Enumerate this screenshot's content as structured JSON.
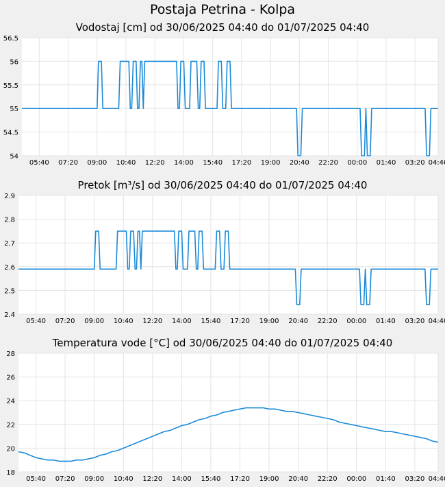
{
  "page": {
    "title": "Postaja Petrina - Kolpa"
  },
  "colors": {
    "series": "#1a8ad8",
    "grid": "#e4e4e4",
    "plot_background": "#ffffff",
    "page_background": "#f0f0f0"
  },
  "chart_data": [
    {
      "type": "line",
      "title": "Vodostaj [cm] od 30/06/2025 04:40 do 01/07/2025 04:40",
      "xlabel": "",
      "ylabel": "",
      "x_tick_labels": [
        "05:40",
        "07:20",
        "09:00",
        "10:40",
        "12:20",
        "14:00",
        "15:40",
        "17:20",
        "19:00",
        "20:40",
        "22:20",
        "00:00",
        "01:40",
        "03:20",
        "04:40"
      ],
      "x_tick_minutes": [
        60,
        160,
        260,
        360,
        460,
        560,
        660,
        760,
        860,
        960,
        1060,
        1160,
        1260,
        1360,
        1440
      ],
      "x_unit": "minutes from 30/06/2025 04:40",
      "xlim": [
        0,
        1440
      ],
      "ylim": [
        54,
        56.5
      ],
      "y_ticks": [
        54,
        54.5,
        55,
        55.5,
        56,
        56.5
      ],
      "y_tick_labels": [
        "54",
        "54.5",
        "55",
        "55.5",
        "56",
        "56.5"
      ],
      "grid": true,
      "step": 5,
      "spike_value": 56,
      "base_value": 55,
      "dip_value": 54,
      "up_segments": [
        [
          265,
          275
        ],
        [
          340,
          370
        ],
        [
          385,
          395
        ],
        [
          410,
          415
        ],
        [
          425,
          535
        ],
        [
          550,
          560
        ],
        [
          585,
          605
        ],
        [
          620,
          630
        ],
        [
          680,
          690
        ],
        [
          710,
          720
        ]
      ],
      "down_segments": [
        [
          955,
          965
        ],
        [
          1175,
          1185
        ],
        [
          1195,
          1205
        ],
        [
          1400,
          1410
        ]
      ]
    },
    {
      "type": "line",
      "title": "Pretok [m³/s] od 30/06/2025 04:40 do 01/07/2025 04:40",
      "xlabel": "",
      "ylabel": "",
      "x_tick_labels": [
        "05:40",
        "07:20",
        "09:00",
        "10:40",
        "12:20",
        "14:00",
        "15:40",
        "17:20",
        "19:00",
        "20:40",
        "22:20",
        "00:00",
        "01:40",
        "03:20",
        "04:40"
      ],
      "x_tick_minutes": [
        60,
        160,
        260,
        360,
        460,
        560,
        660,
        760,
        860,
        960,
        1060,
        1160,
        1260,
        1360,
        1440
      ],
      "xlim": [
        0,
        1440
      ],
      "ylim": [
        2.4,
        2.9
      ],
      "y_ticks": [
        2.4,
        2.5,
        2.6,
        2.7,
        2.8,
        2.9
      ],
      "y_tick_labels": [
        "2.4",
        "2.5",
        "2.6",
        "2.7",
        "2.8",
        "2.9"
      ],
      "grid": true,
      "step": 5,
      "spike_value": 2.75,
      "base_value": 2.59,
      "dip_value": 2.44,
      "up_segments": [
        [
          265,
          275
        ],
        [
          340,
          370
        ],
        [
          385,
          395
        ],
        [
          410,
          415
        ],
        [
          425,
          535
        ],
        [
          550,
          560
        ],
        [
          585,
          605
        ],
        [
          620,
          630
        ],
        [
          680,
          690
        ],
        [
          710,
          720
        ]
      ],
      "down_segments": [
        [
          955,
          965
        ],
        [
          1175,
          1185
        ],
        [
          1195,
          1205
        ],
        [
          1400,
          1410
        ]
      ]
    },
    {
      "type": "line",
      "title": "Temperatura vode [°C] od 30/06/2025 04:40 do 01/07/2025 04:40",
      "xlabel": "",
      "ylabel": "",
      "x_tick_labels": [
        "05:40",
        "07:20",
        "09:00",
        "10:40",
        "12:20",
        "14:00",
        "15:40",
        "17:20",
        "19:00",
        "20:40",
        "22:20",
        "00:00",
        "01:40",
        "03:20",
        "04:40"
      ],
      "x_tick_minutes": [
        60,
        160,
        260,
        360,
        460,
        560,
        660,
        760,
        860,
        960,
        1060,
        1160,
        1260,
        1360,
        1440
      ],
      "xlim": [
        0,
        1440
      ],
      "ylim": [
        18,
        28
      ],
      "y_ticks": [
        18,
        20,
        22,
        24,
        26,
        28
      ],
      "y_tick_labels": [
        "18",
        "20",
        "22",
        "24",
        "26",
        "28"
      ],
      "grid": true,
      "step": 20,
      "keypoints": [
        [
          0,
          19.7
        ],
        [
          30,
          19.5
        ],
        [
          60,
          19.2
        ],
        [
          100,
          19.0
        ],
        [
          160,
          18.9
        ],
        [
          220,
          19.0
        ],
        [
          260,
          19.2
        ],
        [
          300,
          19.5
        ],
        [
          360,
          20.0
        ],
        [
          420,
          20.6
        ],
        [
          480,
          21.2
        ],
        [
          540,
          21.7
        ],
        [
          600,
          22.2
        ],
        [
          660,
          22.7
        ],
        [
          720,
          23.1
        ],
        [
          780,
          23.35
        ],
        [
          840,
          23.35
        ],
        [
          900,
          23.2
        ],
        [
          960,
          23.0
        ],
        [
          1020,
          22.7
        ],
        [
          1080,
          22.35
        ],
        [
          1140,
          22.0
        ],
        [
          1200,
          21.7
        ],
        [
          1260,
          21.45
        ],
        [
          1320,
          21.2
        ],
        [
          1380,
          20.9
        ],
        [
          1440,
          20.5
        ]
      ],
      "quantum": 0.1
    }
  ]
}
